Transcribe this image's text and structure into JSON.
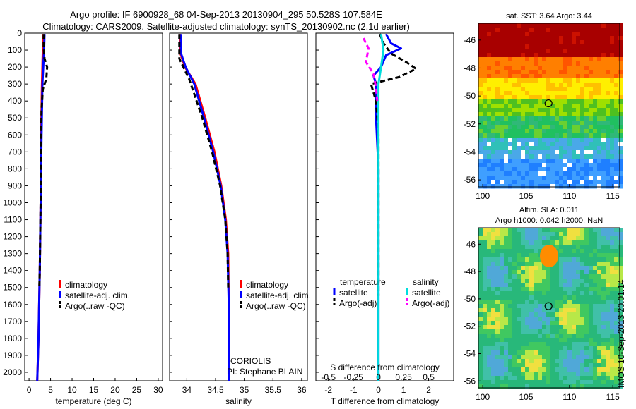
{
  "title": {
    "line1": "Argo profile: IF 6900928_68 04-Sep-2013 20130904_295 50.528S 107.584E",
    "line2": "Climatology: CARS2009. Satellite-adjusted climatology: synTS_20130902.nc (2.1d earlier)"
  },
  "stamp": "IMOS 10-Sep-2013 20:01:14",
  "colors": {
    "climatology": "#ff0000",
    "satellite": "#0000ff",
    "argo": "#000000",
    "sal_satellite": "#00dddd",
    "sal_argo": "#ff00ff",
    "axes": "#000000"
  },
  "chart_data": [
    {
      "type": "line",
      "id": "temperature",
      "xlabel": "temperature (deg C)",
      "ylabel": "",
      "xlim": [
        -1,
        31
      ],
      "ylim": [
        2050,
        0
      ],
      "xticks": [
        0,
        5,
        10,
        15,
        20,
        25,
        30
      ],
      "yticks": [
        0,
        100,
        200,
        300,
        400,
        500,
        600,
        700,
        800,
        900,
        1000,
        1100,
        1200,
        1300,
        1400,
        1500,
        1600,
        1700,
        1800,
        1900,
        2000
      ],
      "legend": {
        "placement": "lower-middle",
        "entries": [
          "climatology",
          "satellite-adj. clim.",
          "Argo(..raw -QC)"
        ]
      },
      "series": [
        {
          "name": "climatology",
          "color": "#ff0000",
          "dash": "",
          "points": [
            [
              3.3,
              5
            ],
            [
              3.2,
              100
            ],
            [
              3.0,
              300
            ],
            [
              2.8,
              600
            ],
            [
              2.7,
              1000
            ],
            [
              2.5,
              1400
            ],
            [
              2.2,
              1800
            ],
            [
              1.9,
              2050
            ]
          ]
        },
        {
          "name": "satellite-adj. clim.",
          "color": "#0000ff",
          "dash": "",
          "points": [
            [
              3.6,
              5
            ],
            [
              3.5,
              100
            ],
            [
              3.1,
              300
            ],
            [
              2.9,
              600
            ],
            [
              2.7,
              1000
            ],
            [
              2.5,
              1400
            ],
            [
              2.2,
              1800
            ],
            [
              1.9,
              2050
            ]
          ]
        },
        {
          "name": "Argo(..raw -QC)",
          "color": "#000000",
          "dash": "7,4",
          "points": [
            [
              3.4,
              5
            ],
            [
              3.4,
              80
            ],
            [
              3.6,
              150
            ],
            [
              4.2,
              200
            ],
            [
              4.0,
              270
            ],
            [
              3.2,
              330
            ],
            [
              2.9,
              450
            ],
            [
              2.8,
              600
            ],
            [
              2.7,
              1000
            ],
            [
              2.5,
              1400
            ],
            [
              2.4,
              1500
            ]
          ]
        }
      ]
    },
    {
      "type": "line",
      "id": "salinity",
      "xlabel": "salinity",
      "ylabel": "",
      "xlim": [
        33.7,
        36.1
      ],
      "ylim": [
        2050,
        0
      ],
      "xticks": [
        34,
        34.5,
        35,
        35.5,
        36
      ],
      "xticklabels": [
        "34",
        "34.5",
        "35",
        "35.5",
        "36"
      ],
      "legend": {
        "placement": "lower-middle",
        "entries": [
          "climatology",
          "satellite-adj. clim.",
          "Argo(..raw -QC)"
        ]
      },
      "annotations": [
        "CORIOLIS",
        "PI: Stephane BLAIN"
      ],
      "series": [
        {
          "name": "climatology",
          "color": "#ff0000",
          "dash": "",
          "points": [
            [
              33.88,
              5
            ],
            [
              33.89,
              120
            ],
            [
              33.97,
              200
            ],
            [
              34.15,
              300
            ],
            [
              34.32,
              500
            ],
            [
              34.48,
              700
            ],
            [
              34.6,
              900
            ],
            [
              34.68,
              1100
            ],
            [
              34.72,
              1300
            ],
            [
              34.73,
              1600
            ],
            [
              34.73,
              2050
            ]
          ]
        },
        {
          "name": "satellite-adj. clim.",
          "color": "#0000ff",
          "dash": "",
          "points": [
            [
              33.9,
              5
            ],
            [
              33.9,
              120
            ],
            [
              33.98,
              200
            ],
            [
              34.13,
              300
            ],
            [
              34.3,
              500
            ],
            [
              34.46,
              700
            ],
            [
              34.59,
              900
            ],
            [
              34.67,
              1100
            ],
            [
              34.71,
              1300
            ],
            [
              34.73,
              1600
            ],
            [
              34.73,
              2050
            ]
          ]
        },
        {
          "name": "Argo(..raw -QC)",
          "color": "#000000",
          "dash": "7,4",
          "points": [
            [
              33.87,
              5
            ],
            [
              33.87,
              150
            ],
            [
              33.94,
              200
            ],
            [
              34.04,
              270
            ],
            [
              34.1,
              330
            ],
            [
              34.27,
              500
            ],
            [
              34.44,
              700
            ],
            [
              34.58,
              900
            ],
            [
              34.67,
              1100
            ],
            [
              34.71,
              1300
            ],
            [
              34.72,
              1500
            ]
          ]
        }
      ]
    },
    {
      "type": "line",
      "id": "difference",
      "xlabel": "T difference from climatology",
      "title_bottom": "S difference from climatology",
      "xlim": [
        -2.5,
        3
      ],
      "ylim": [
        2050,
        0
      ],
      "xticks": [
        -2,
        -1,
        0,
        1,
        2
      ],
      "sticks": [
        {
          "label": "-0.5",
          "t": -2
        },
        {
          "label": "-0.25",
          "t": -1
        },
        {
          "label": "0",
          "t": 0
        },
        {
          "label": "0.25",
          "t": 1
        },
        {
          "label": "0.5",
          "t": 2
        }
      ],
      "legend": {
        "placement": "lower-middle",
        "headers": [
          "temperature",
          "salinity"
        ],
        "entries": [
          "satellite",
          "Argo(-adj)",
          "satellite",
          "Argo(-adj)"
        ]
      },
      "series": [
        {
          "name": "satellite",
          "color": "#0000ff",
          "dash": "",
          "points": [
            [
              0.3,
              5
            ],
            [
              0.5,
              60
            ],
            [
              0.9,
              90
            ],
            [
              0.3,
              130
            ],
            [
              0.1,
              200
            ],
            [
              -0.2,
              250
            ],
            [
              -0.1,
              300
            ],
            [
              -0.1,
              500
            ],
            [
              0,
              800
            ],
            [
              0,
              1200
            ],
            [
              0,
              1600
            ],
            [
              0,
              2050
            ]
          ]
        },
        {
          "name": "Argo(-adj)",
          "color": "#000000",
          "dash": "7,4",
          "points": [
            [
              0.05,
              5
            ],
            [
              0.2,
              60
            ],
            [
              0.5,
              120
            ],
            [
              1.1,
              170
            ],
            [
              1.5,
              210
            ],
            [
              0.8,
              260
            ],
            [
              -0.3,
              300
            ],
            [
              -0.1,
              400
            ],
            [
              0,
              600
            ],
            [
              0,
              1000
            ],
            [
              0,
              1400
            ],
            [
              0,
              1550
            ]
          ]
        },
        {
          "name": "sal satellite",
          "color": "#00dddd",
          "dash": "",
          "points": [
            [
              0.1,
              5
            ],
            [
              0.2,
              100
            ],
            [
              0.1,
              200
            ],
            [
              0,
              300
            ],
            [
              0,
              500
            ],
            [
              0,
              800
            ],
            [
              0,
              1200
            ],
            [
              0,
              1600
            ],
            [
              0,
              2050
            ]
          ]
        },
        {
          "name": "sal Argo(-adj)",
          "color": "#ff00ff",
          "dash": "7,4",
          "points": [
            [
              -0.6,
              30
            ],
            [
              -0.4,
              90
            ],
            [
              -0.5,
              170
            ],
            [
              -0.2,
              240
            ],
            [
              -0.1,
              320
            ],
            [
              -0.05,
              400
            ]
          ]
        }
      ]
    },
    {
      "type": "heatmap",
      "id": "sst_map",
      "title": "sat. SST: 3.64 Argo: 3.44",
      "xlim": [
        99.5,
        115.8
      ],
      "ylim": [
        -56.5,
        -44.8
      ],
      "xticks": [
        100,
        105,
        110,
        115
      ],
      "yticks": [
        -46,
        -48,
        -50,
        -52,
        -54,
        -56
      ],
      "marker": {
        "lon": 107.584,
        "lat": -50.528
      }
    },
    {
      "type": "heatmap",
      "id": "sla_map",
      "title_lines": [
        "Altim. SLA: 0.011",
        "Argo h1000: 0.042 h2000: NaN"
      ],
      "xlim": [
        99.5,
        115.8
      ],
      "ylim": [
        -56.5,
        -44.8
      ],
      "xticks": [
        100,
        105,
        110,
        115
      ],
      "yticks": [
        -46,
        -48,
        -50,
        -52,
        -54,
        -56
      ],
      "marker": {
        "lon": 107.584,
        "lat": -50.528
      }
    }
  ]
}
